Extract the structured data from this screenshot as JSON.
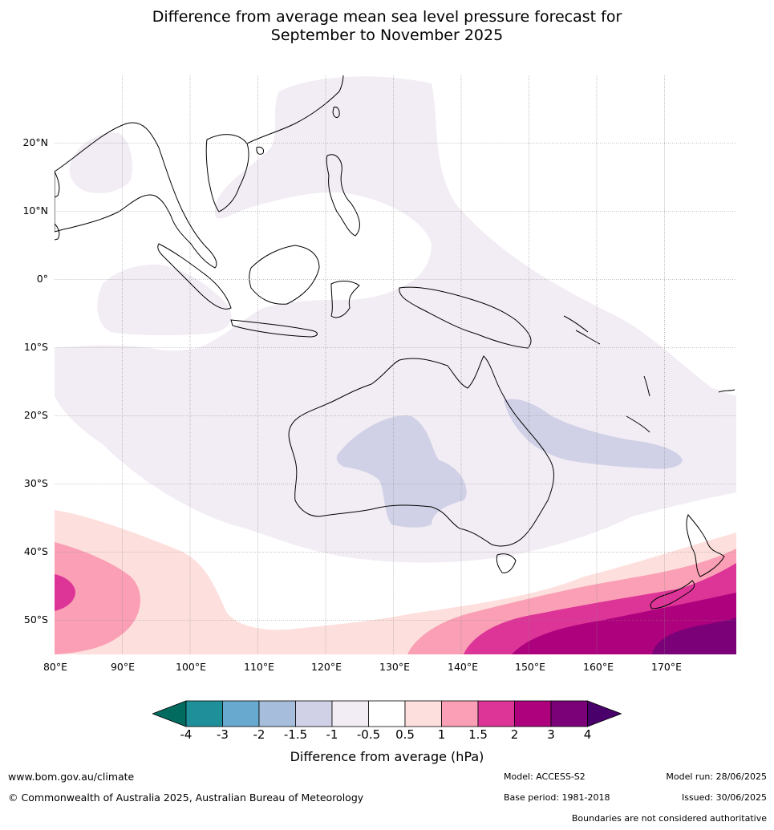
{
  "title_line1": "Difference from average mean sea level pressure forecast for",
  "title_line2": "September to November 2025",
  "map": {
    "lat_labels": [
      "20°N",
      "10°N",
      "0°",
      "10°S",
      "20°S",
      "30°S",
      "40°S",
      "50°S"
    ],
    "lon_labels": [
      "80°E",
      "90°E",
      "100°E",
      "110°E",
      "120°E",
      "130°E",
      "140°E",
      "150°E",
      "160°E",
      "170°E"
    ]
  },
  "colorbar": {
    "ticks": [
      "-4",
      "-3",
      "-2",
      "-1.5",
      "-1",
      "-0.5",
      "0.5",
      "1",
      "1.5",
      "2",
      "3",
      "4"
    ],
    "colors": [
      "#006b5e",
      "#1f8f99",
      "#67a9cf",
      "#a6bddb",
      "#d0d1e6",
      "#f2ecf5",
      "#ffffff",
      "#fde0dd",
      "#fa9fb5",
      "#dd3497",
      "#ae017e",
      "#7a0177",
      "#49006a"
    ],
    "label": "Difference from average (hPa)"
  },
  "footer": {
    "website": "www.bom.gov.au/climate",
    "copyright": "© Commonwealth of Australia 2025, Australian Bureau of Meteorology",
    "model": "Model: ACCESS-S2",
    "base_period": "Base period: 1981-2018",
    "model_run": "Model run: 28/06/2025",
    "issued": "Issued: 30/06/2025",
    "boundaries_note": "Boundaries are not considered authoritative"
  }
}
